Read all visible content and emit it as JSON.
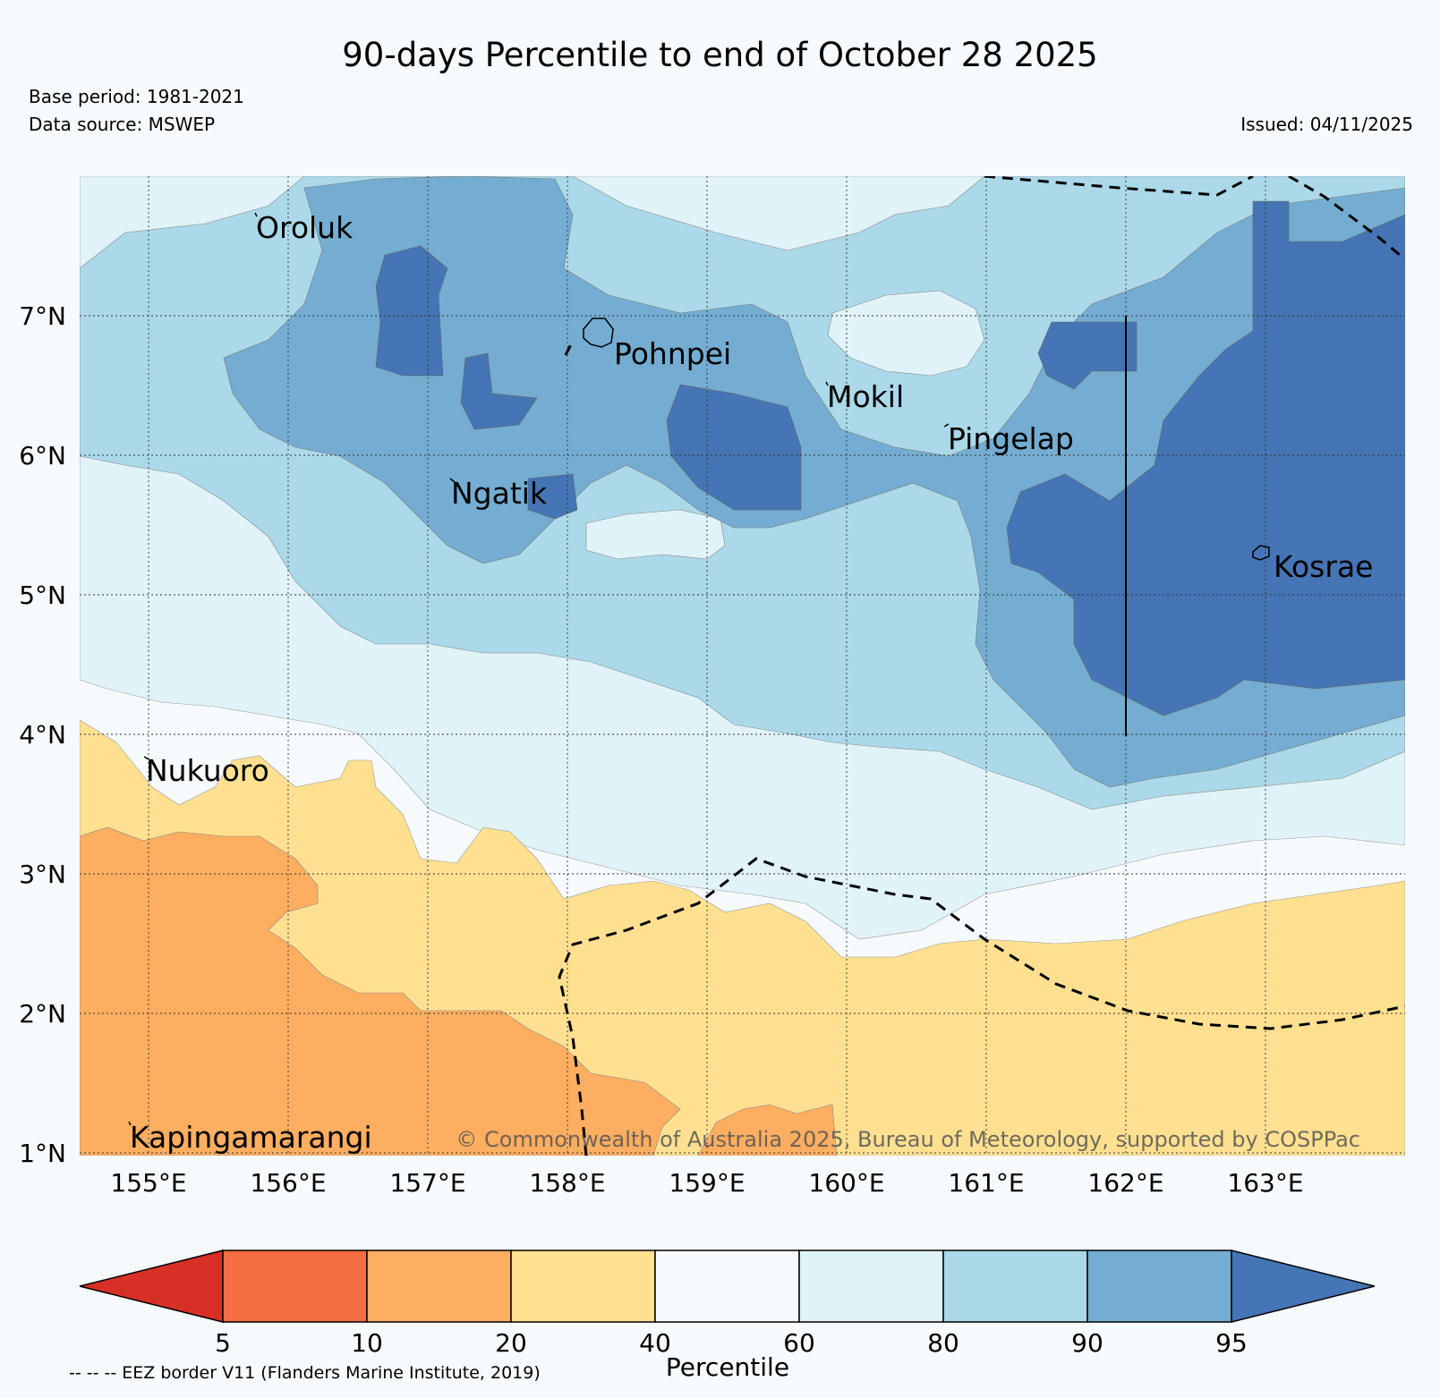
{
  "title": "90-days Percentile to end of October 28 2025",
  "base_period": "Base period: 1981-2021",
  "data_source": "Data source: MSWEP",
  "issued": "Issued: 04/11/2025",
  "copyright": "© Commonwealth of Australia 2025, Bureau of Meteorology, supported by COSPPac",
  "eez_note": "-- -- -- EEZ border V11 (Flanders Marine Institute, 2019)",
  "lon_labels": [
    "155°E",
    "156°E",
    "157°E",
    "158°E",
    "159°E",
    "160°E",
    "161°E",
    "162°E",
    "163°E"
  ],
  "lat_labels": [
    "1°N",
    "2°N",
    "3°N",
    "4°N",
    "5°N",
    "6°N",
    "7°N"
  ],
  "places": [
    {
      "name": "Oroluk",
      "lon": 155.75,
      "lat": 7.6
    },
    {
      "name": "Pohnpei",
      "lon": 158.2,
      "lat": 6.9
    },
    {
      "name": "Mokil",
      "lon": 159.8,
      "lat": 6.5
    },
    {
      "name": "Pingelap",
      "lon": 160.7,
      "lat": 6.2
    },
    {
      "name": "Ngatik",
      "lon": 157.35,
      "lat": 5.8
    },
    {
      "name": "Kosrae",
      "lon": 162.95,
      "lat": 5.3
    },
    {
      "name": "Nukuoro",
      "lon": 154.95,
      "lat": 3.85
    },
    {
      "name": "Kapingamarangi",
      "lon": 154.8,
      "lat": 1.1
    }
  ],
  "colorbar": {
    "label": "Percentile",
    "ticks": [
      "5",
      "10",
      "20",
      "40",
      "60",
      "80",
      "90",
      "95"
    ],
    "colors": [
      "#d73027",
      "#f46d43",
      "#fdae61",
      "#fee090",
      "#f7fafd",
      "#e0f3f8",
      "#abd9e9",
      "#74add1",
      "#4575b4"
    ]
  }
}
